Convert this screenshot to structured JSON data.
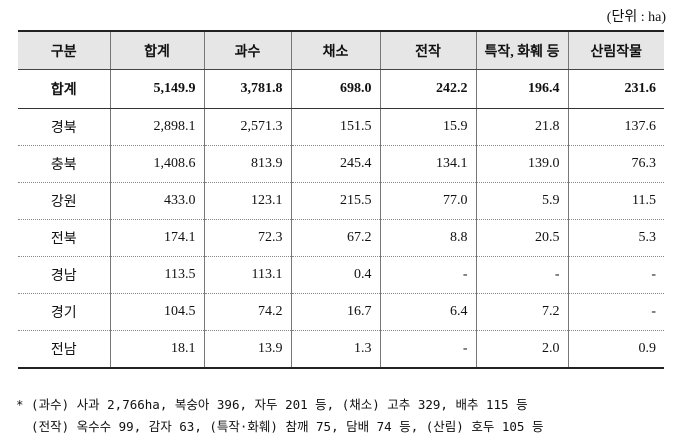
{
  "unit_label": "(단위 : ha)",
  "table": {
    "headers": [
      "구분",
      "합계",
      "과수",
      "채소",
      "전작",
      "특작, 화훼 등",
      "산림작물"
    ],
    "rows": [
      {
        "region": "합계",
        "values": [
          "5,149.9",
          "3,781.8",
          "698.0",
          "242.2",
          "196.4",
          "231.6"
        ],
        "total": true
      },
      {
        "region": "경북",
        "values": [
          "2,898.1",
          "2,571.3",
          "151.5",
          "15.9",
          "21.8",
          "137.6"
        ]
      },
      {
        "region": "충북",
        "values": [
          "1,408.6",
          "813.9",
          "245.4",
          "134.1",
          "139.0",
          "76.3"
        ]
      },
      {
        "region": "강원",
        "values": [
          "433.0",
          "123.1",
          "215.5",
          "77.0",
          "5.9",
          "11.5"
        ]
      },
      {
        "region": "전북",
        "values": [
          "174.1",
          "72.3",
          "67.2",
          "8.8",
          "20.5",
          "5.3"
        ]
      },
      {
        "region": "경남",
        "values": [
          "113.5",
          "113.1",
          "0.4",
          "-",
          "-",
          "-"
        ]
      },
      {
        "region": "경기",
        "values": [
          "104.5",
          "74.2",
          "16.7",
          "6.4",
          "7.2",
          "-"
        ]
      },
      {
        "region": "전남",
        "values": [
          "18.1",
          "13.9",
          "1.3",
          "-",
          "2.0",
          "0.9"
        ]
      }
    ]
  },
  "notes": [
    "* (과수) 사과 2,766ha, 복숭아 396, 자두 201 등, (채소) 고추 329, 배추 115 등",
    "  (전작) 옥수수 99, 감자 63, (특작·화훼) 참깨 75, 담배 74 등, (산림) 호두 105 등"
  ]
}
